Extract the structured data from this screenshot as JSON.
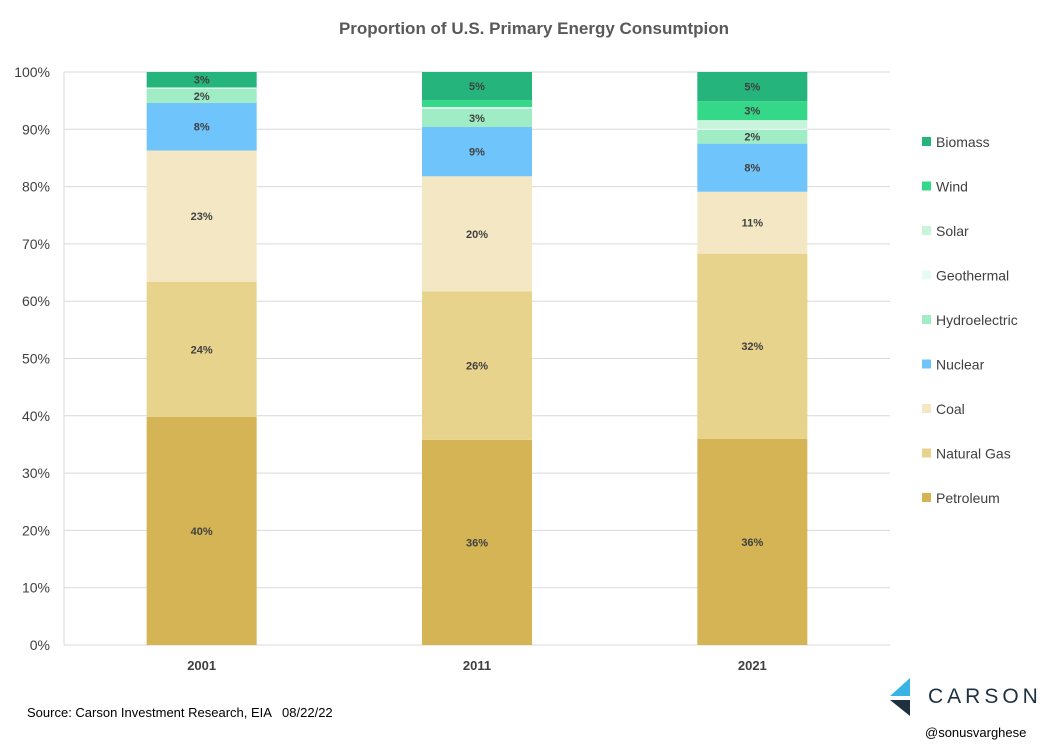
{
  "chart_data": {
    "type": "bar",
    "stacked": true,
    "title": "Proportion of U.S. Primary Energy Consumtpion",
    "categories": [
      "2001",
      "2011",
      "2021"
    ],
    "ylim": [
      0,
      100
    ],
    "y_ticks": [
      "0%",
      "10%",
      "20%",
      "30%",
      "40%",
      "50%",
      "60%",
      "70%",
      "80%",
      "90%",
      "100%"
    ],
    "grid": true,
    "legend_position": "right",
    "series": [
      {
        "name": "Petroleum",
        "color": "#d4b454",
        "values": [
          39.8,
          35.8,
          36.0
        ],
        "labels": [
          "40%",
          "36%",
          "36%"
        ]
      },
      {
        "name": "Natural Gas",
        "color": "#e8d38c",
        "values": [
          23.6,
          25.9,
          32.3
        ],
        "labels": [
          "24%",
          "26%",
          "32%"
        ]
      },
      {
        "name": "Coal",
        "color": "#f4e8c4",
        "values": [
          22.9,
          20.1,
          10.8
        ],
        "labels": [
          "23%",
          "20%",
          "11%"
        ]
      },
      {
        "name": "Nuclear",
        "color": "#70c4fc",
        "values": [
          8.3,
          8.6,
          8.4
        ],
        "labels": [
          "8%",
          "9%",
          "8%"
        ]
      },
      {
        "name": "Hydroelectric",
        "color": "#a0ecc4",
        "values": [
          2.5,
          3.2,
          2.4
        ],
        "labels": [
          "2%",
          "3%",
          "2%"
        ]
      },
      {
        "name": "Geothermal",
        "color": "#e4fcf4",
        "values": [
          0.2,
          0.2,
          0.2
        ],
        "labels": [
          "",
          "",
          ""
        ]
      },
      {
        "name": "Solar",
        "color": "#c8f4dc",
        "values": [
          0.0,
          0.1,
          1.5
        ],
        "labels": [
          "",
          "",
          ""
        ]
      },
      {
        "name": "Wind",
        "color": "#34d888",
        "values": [
          0.0,
          1.2,
          3.3
        ],
        "labels": [
          "",
          "",
          "3%"
        ]
      },
      {
        "name": "Biomass",
        "color": "#24b47c",
        "values": [
          2.7,
          4.9,
          5.1
        ],
        "labels": [
          "3%",
          "5%",
          "5%"
        ]
      }
    ]
  },
  "footer": {
    "source": "Source: Carson Investment Research, EIA   08/22/22",
    "brand": "CARSON",
    "handle": "@sonusvarghese"
  },
  "colors": {
    "grid": "#d9d9d9",
    "brand_light": "#38b4e4",
    "brand_dark": "#1f3040"
  }
}
